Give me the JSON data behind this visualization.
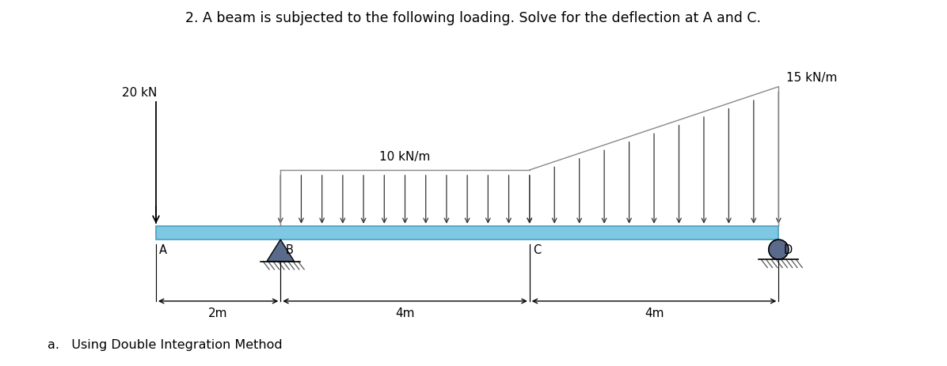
{
  "title": "2. A beam is subjected to the following loading. Solve for the deflection at A and C.",
  "subtitle": "a.   Using Double Integration Method",
  "beam_color": "#7ec8e3",
  "beam_edge_color": "#4a9fc0",
  "background_color": "#ffffff",
  "points": {
    "A": 0.0,
    "B": 2.0,
    "C": 6.0,
    "D": 10.0
  },
  "beam_y": 0.0,
  "beam_height": 0.22,
  "point_load_label": "20 kN",
  "udl_uniform_label": "10 kN/m",
  "udl_trap_label": "15 kN/m",
  "dim_labels": [
    "2m",
    "4m",
    "4m"
  ],
  "pin_color": "#5a6a8a",
  "roller_color": "#5a6a8a",
  "arrow_color": "#333333",
  "xlim": [
    -0.8,
    11.0
  ],
  "ylim": [
    -1.6,
    3.2
  ]
}
